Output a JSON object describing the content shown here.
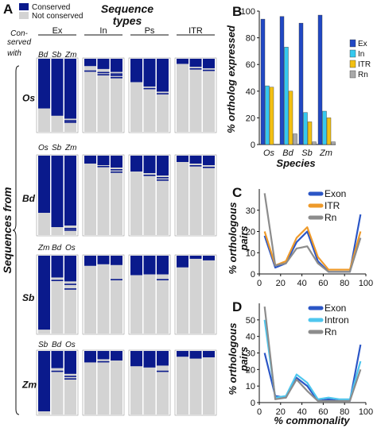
{
  "colors": {
    "conserved": "#0a1a8c",
    "not_conserved": "#d3d3d3",
    "ex": "#2148c4",
    "in": "#35c9ef",
    "itr": "#f2c012",
    "rn": "#a9a9a9",
    "exon_line": "#2b56c6",
    "itr_line": "#ee9a2a",
    "intron_line": "#4ec6ee",
    "rn_line": "#8c8c8c"
  },
  "panelA": {
    "label": "A",
    "legend_conserved": "Conserved",
    "legend_not": "Not conserved",
    "title_line1": "Sequence",
    "title_line2": "types",
    "conserved_with_1": "Con-",
    "conserved_with_2": "served",
    "conserved_with_3": "with",
    "col_types": [
      "Ex",
      "In",
      "Ps",
      "ITR"
    ],
    "side_title": "Sequences from",
    "groups": [
      {
        "species": "Os",
        "cols": [
          "Bd",
          "Sb",
          "Zm"
        ],
        "bars": [
          [
            0.68,
            0.78,
            0.82
          ],
          [
            0.1,
            0.14,
            0.18
          ],
          [
            0.32,
            0.38,
            0.45
          ],
          [
            0.07,
            0.11,
            0.13
          ]
        ],
        "stripes": [
          [
            [],
            [],
            [
              0.84,
              0.86
            ]
          ],
          [
            [
              0.16
            ],
            [
              0.18,
              0.21
            ],
            [
              0.2,
              0.22,
              0.25
            ]
          ],
          [
            [],
            [
              0.4
            ],
            [
              0.47
            ]
          ],
          [
            [],
            [
              0.13
            ],
            [
              0.15
            ]
          ]
        ]
      },
      {
        "species": "Bd",
        "cols": [
          "Os",
          "Sb",
          "Zm"
        ],
        "bars": [
          [
            0.72,
            0.9,
            0.88
          ],
          [
            0.1,
            0.12,
            0.15
          ],
          [
            0.2,
            0.22,
            0.25
          ],
          [
            0.08,
            0.1,
            0.12
          ]
        ],
        "stripes": [
          [
            [],
            [],
            [
              0.91,
              0.93
            ]
          ],
          [
            [],
            [
              0.13
            ],
            [
              0.17,
              0.2
            ]
          ],
          [
            [],
            [
              0.24
            ],
            [
              0.27,
              0.3
            ]
          ],
          [
            [],
            [
              0.12
            ],
            [
              0.14
            ]
          ]
        ]
      },
      {
        "species": "Sb",
        "cols": [
          "Zm",
          "Bd",
          "Os"
        ],
        "bars": [
          [
            0.95,
            0.28,
            0.33
          ],
          [
            0.13,
            0.11,
            0.12
          ],
          [
            0.25,
            0.24,
            0.24
          ],
          [
            0.15,
            0.04,
            0.06
          ]
        ],
        "stripes": [
          [
            [],
            [
              0.31
            ],
            [
              0.36,
              0.42
            ]
          ],
          [
            [],
            [],
            [
              0.3
            ]
          ],
          [
            [],
            [],
            [
              0.3
            ]
          ],
          [
            [],
            [],
            []
          ]
        ]
      },
      {
        "species": "Zm",
        "cols": [
          "Sb",
          "Bd",
          "Os"
        ],
        "bars": [
          [
            0.95,
            0.27,
            0.36
          ],
          [
            0.18,
            0.13,
            0.15
          ],
          [
            0.24,
            0.26,
            0.23
          ],
          [
            0.09,
            0.12,
            0.1
          ]
        ],
        "stripes": [
          [
            [],
            [
              0.31
            ],
            [
              0.39,
              0.43
            ]
          ],
          [
            [],
            [
              0.16
            ],
            []
          ],
          [
            [],
            [],
            [
              0.31
            ]
          ],
          [
            [],
            [],
            []
          ]
        ]
      }
    ]
  },
  "panelB": {
    "label": "B",
    "ylabel": "% ortholog expressed",
    "xlabel": "Species",
    "ticks": [
      "0",
      "20",
      "40",
      "60",
      "80",
      "100"
    ],
    "legend": [
      "Ex",
      "In",
      "ITR",
      "Rn"
    ]
  },
  "panelC": {
    "label": "C",
    "ylabel_1": "% orthologous",
    "ylabel_2": "pairs",
    "ticks_y": [
      "0",
      "10",
      "20",
      "30"
    ],
    "legend": [
      "Exon",
      "ITR",
      "Rn"
    ]
  },
  "panelD": {
    "label": "D",
    "ylabel_1": "% orthologous",
    "ylabel_2": "pairs",
    "ticks_y": [
      "0",
      "10",
      "20",
      "30",
      "40",
      "50"
    ],
    "ticks_x": [
      "0",
      "20",
      "40",
      "60",
      "80",
      "100"
    ],
    "xlabel": "% commonality",
    "legend": [
      "Exon",
      "Intron",
      "Rn"
    ]
  },
  "chart_data": [
    {
      "type": "bar",
      "categories": [
        "Os",
        "Bd",
        "Sb",
        "Zm"
      ],
      "series": [
        {
          "name": "Ex",
          "values": [
            94,
            96,
            91,
            97
          ]
        },
        {
          "name": "In",
          "values": [
            44,
            73,
            24,
            25
          ]
        },
        {
          "name": "ITR",
          "values": [
            43,
            40,
            17,
            20
          ]
        },
        {
          "name": "Rn",
          "values": [
            0,
            8,
            2,
            2
          ]
        }
      ],
      "xlabel": "Species",
      "ylabel": "% ortholog expressed",
      "ylim": [
        0,
        100
      ]
    },
    {
      "type": "line",
      "x": [
        5,
        15,
        25,
        35,
        45,
        55,
        65,
        75,
        85,
        95
      ],
      "series": [
        {
          "name": "Exon",
          "values": [
            18,
            3,
            5,
            15,
            20,
            6,
            1,
            1,
            1,
            28
          ]
        },
        {
          "name": "ITR",
          "values": [
            20,
            4,
            6,
            17,
            22,
            8,
            2,
            2,
            2,
            20
          ]
        },
        {
          "name": "Rn",
          "values": [
            38,
            4,
            5,
            12,
            13,
            5,
            1,
            1,
            1,
            17
          ]
        }
      ],
      "ylabel": "% orthologous pairs",
      "xlim": [
        0,
        100
      ],
      "ylim": [
        0,
        40
      ]
    },
    {
      "type": "line",
      "x": [
        5,
        15,
        25,
        35,
        45,
        55,
        65,
        75,
        85,
        95
      ],
      "series": [
        {
          "name": "Exon",
          "values": [
            30,
            4,
            3,
            15,
            10,
            1,
            2,
            1,
            1,
            35
          ]
        },
        {
          "name": "Intron",
          "values": [
            50,
            3,
            4,
            17,
            12,
            2,
            3,
            2,
            2,
            25
          ]
        },
        {
          "name": "Rn",
          "values": [
            58,
            2,
            3,
            14,
            7,
            1,
            1,
            1,
            1,
            20
          ]
        }
      ],
      "xlabel": "% commonality",
      "ylabel": "% orthologous pairs",
      "xlim": [
        0,
        100
      ],
      "ylim": [
        0,
        60
      ]
    }
  ]
}
